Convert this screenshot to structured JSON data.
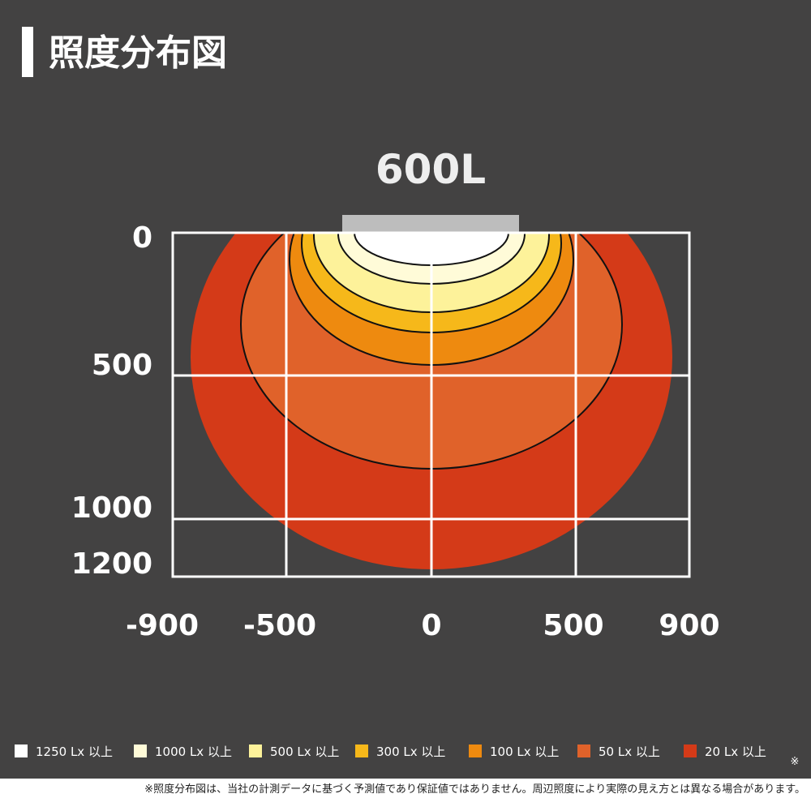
{
  "header": {
    "title": "照度分布図"
  },
  "diagram": {
    "lamp_label": "600L",
    "y_ticks": [
      "0",
      "500",
      "1000",
      "1200"
    ],
    "x_ticks": [
      "-900",
      "-500",
      "0",
      "500",
      "900"
    ]
  },
  "legend": {
    "items": [
      "1250 Lx 以上",
      "1000 Lx 以上",
      "500 Lx 以上",
      "300 Lx 以上",
      "100 Lx 以上",
      "50 Lx 以上",
      "20 Lx 以上"
    ],
    "mark": "※"
  },
  "footer": {
    "note": "※照度分布図は、当社の計測データに基づく予測値であり保証値ではありません。周辺照度により実際の見え方とは異なる場合があります。"
  }
}
